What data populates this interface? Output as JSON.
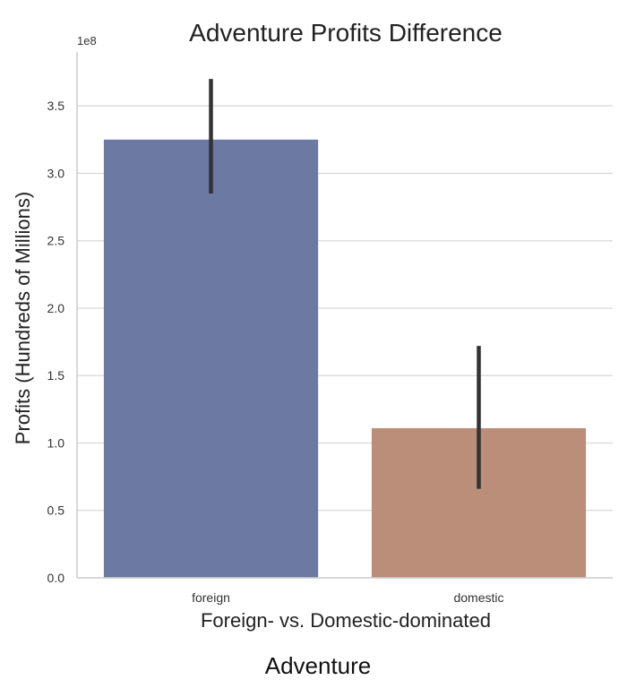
{
  "chart_data": {
    "type": "bar",
    "title": "Adventure Profits Difference",
    "xlabel": "Foreign- vs. Domestic-dominated",
    "ylabel": "Profits (Hundreds of Millions)",
    "y_offset_label": "1e8",
    "categories": [
      "foreign",
      "domestic"
    ],
    "values": [
      3.25,
      1.11
    ],
    "error_bars": [
      [
        2.85,
        3.7
      ],
      [
        0.66,
        1.72
      ]
    ],
    "ylim": [
      0,
      3.9
    ],
    "yticks": [
      "0.0",
      "0.5",
      "1.0",
      "1.5",
      "2.0",
      "2.5",
      "3.0",
      "3.5"
    ],
    "grid": true,
    "colors": [
      "#6b79a3",
      "#bb8e7a"
    ],
    "errorbar_color": "#333333",
    "grid_color": "#d9d9d9",
    "axis_color": "#cccccc"
  },
  "caption": "Adventure"
}
